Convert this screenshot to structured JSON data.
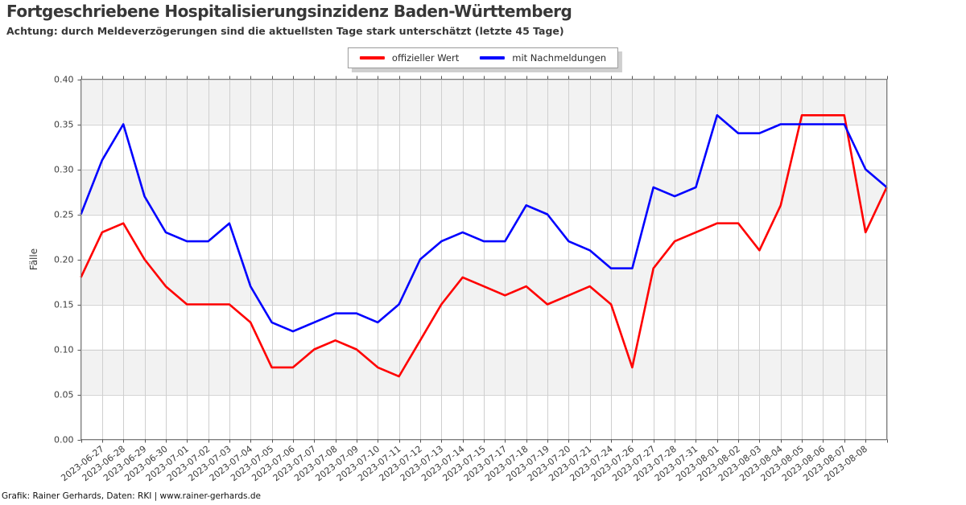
{
  "header": {
    "title": "Fortgeschriebene Hospitalisierungsinzidenz Baden-Württemberg",
    "subtitle": "Achtung: durch Meldeverzögerungen sind die aktuellsten Tage stark unterschätzt (letzte 45 Tage)"
  },
  "legend": {
    "items": [
      {
        "label": "offizieller Wert",
        "color": "#ff0000"
      },
      {
        "label": "mit Nachmeldungen",
        "color": "#0000ff"
      }
    ]
  },
  "footer": {
    "credit": "Grafik: Rainer Gerhards, Daten: RKI | www.rainer-gerhards.de"
  },
  "chart_data": {
    "type": "line",
    "title": "Fortgeschriebene Hospitalisierungsinzidenz Baden-Württemberg",
    "subtitle": "Achtung: durch Meldeverzögerungen sind die aktuellsten Tage stark unterschätzt (letzte 45 Tage)",
    "xlabel": "",
    "ylabel": "Fälle",
    "ylim": [
      0.0,
      0.4
    ],
    "yticks": [
      0.0,
      0.05,
      0.1,
      0.15,
      0.2,
      0.25,
      0.3,
      0.35,
      0.4
    ],
    "grid": true,
    "legend_position": "top-center",
    "band_colors": [
      "#ffffff",
      "#f2f2f2"
    ],
    "categories": [
      "",
      "2023-06-27",
      "2023-06-28",
      "2023-06-29",
      "2023-06-30",
      "2023-07-01",
      "2023-07-02",
      "2023-07-03",
      "2023-07-04",
      "2023-07-05",
      "2023-07-06",
      "2023-07-07",
      "2023-07-08",
      "2023-07-09",
      "2023-07-10",
      "2023-07-11",
      "2023-07-12",
      "2023-07-13",
      "2023-07-14",
      "2023-07-15",
      "2023-07-17",
      "2023-07-18",
      "2023-07-19",
      "2023-07-20",
      "2023-07-21",
      "2023-07-24",
      "2023-07-26",
      "2023-07-27",
      "2023-07-28",
      "2023-07-31",
      "2023-08-01",
      "2023-08-02",
      "2023-08-03",
      "2023-08-04",
      "2023-08-05",
      "2023-08-06",
      "2023-08-07",
      "2023-08-08",
      ""
    ],
    "series": [
      {
        "name": "offizieller Wert",
        "color": "#ff0000",
        "values": [
          0.18,
          0.23,
          0.24,
          0.2,
          0.17,
          0.15,
          0.15,
          0.15,
          0.13,
          0.08,
          0.08,
          0.1,
          0.11,
          0.1,
          0.08,
          0.07,
          0.11,
          0.15,
          0.18,
          0.17,
          0.16,
          0.17,
          0.15,
          0.16,
          0.17,
          0.15,
          0.08,
          0.19,
          0.22,
          0.23,
          0.24,
          0.24,
          0.21,
          0.26,
          0.36,
          0.36,
          0.36,
          0.23,
          0.28
        ]
      },
      {
        "name": "mit Nachmeldungen",
        "color": "#0000ff",
        "values": [
          0.25,
          0.31,
          0.35,
          0.27,
          0.23,
          0.22,
          0.22,
          0.24,
          0.17,
          0.13,
          0.12,
          0.13,
          0.14,
          0.14,
          0.13,
          0.15,
          0.2,
          0.22,
          0.23,
          0.22,
          0.22,
          0.26,
          0.25,
          0.22,
          0.21,
          0.19,
          0.19,
          0.28,
          0.27,
          0.28,
          0.36,
          0.34,
          0.34,
          0.35,
          0.35,
          0.35,
          0.35,
          0.3,
          0.28
        ]
      }
    ]
  }
}
